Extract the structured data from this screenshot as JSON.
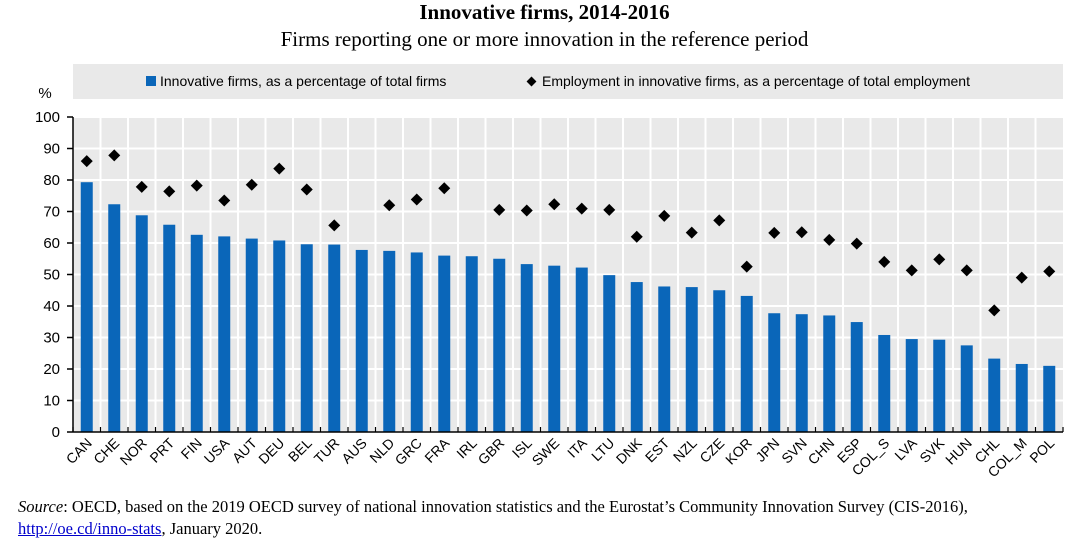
{
  "chart_data": {
    "type": "bar",
    "title": "Innovative firms, 2014-2016",
    "subtitle": "Firms reporting one or more innovation in the reference period",
    "ylabel": "%",
    "xlabel": "",
    "ylim": [
      0,
      100
    ],
    "yticks": [
      0,
      10,
      20,
      30,
      40,
      50,
      60,
      70,
      80,
      90,
      100
    ],
    "grid": true,
    "legend_position": "top",
    "categories": [
      "CAN",
      "CHE",
      "NOR",
      "PRT",
      "FIN",
      "USA",
      "AUT",
      "DEU",
      "BEL",
      "TUR",
      "AUS",
      "NLD",
      "GRC",
      "FRA",
      "IRL",
      "GBR",
      "ISL",
      "SWE",
      "ITA",
      "LTU",
      "DNK",
      "EST",
      "NZL",
      "CZE",
      "KOR",
      "JPN",
      "SVN",
      "CHN",
      "ESP",
      "COL_S",
      "LVA",
      "SVK",
      "HUN",
      "CHL",
      "COL_M",
      "POL"
    ],
    "series": [
      {
        "name": "Innovative firms, as a percentage of total firms",
        "type": "bar",
        "color": "#0a66b9",
        "values": [
          79.3,
          72.3,
          68.8,
          65.8,
          62.6,
          62.1,
          61.4,
          60.8,
          59.6,
          59.5,
          57.8,
          57.5,
          57.0,
          56.0,
          55.8,
          55.0,
          53.3,
          52.8,
          52.2,
          49.8,
          47.6,
          46.2,
          46.0,
          45.0,
          43.2,
          37.7,
          37.4,
          37.0,
          34.9,
          30.8,
          29.5,
          29.3,
          27.5,
          23.3,
          21.6,
          21.0
        ]
      },
      {
        "name": "Employment in innovative firms, as a percentage of total employment",
        "type": "scatter",
        "marker": "diamond",
        "color": "#000000",
        "values": [
          86.0,
          87.8,
          77.8,
          76.4,
          78.2,
          73.5,
          78.5,
          83.6,
          77.0,
          65.6,
          null,
          72.0,
          73.8,
          77.4,
          null,
          70.5,
          70.3,
          72.3,
          70.9,
          70.5,
          62.0,
          68.6,
          63.3,
          67.2,
          52.5,
          63.2,
          63.4,
          61.0,
          59.8,
          54.0,
          51.3,
          54.8,
          51.3,
          38.6,
          49.0,
          51.0
        ]
      }
    ]
  },
  "legend": {
    "bar_label": "Innovative firms, as a percentage of total firms",
    "diamond_label": "Employment in innovative firms, as a percentage of total employment"
  },
  "source": {
    "prefix": "Source",
    "text_1": ": OECD, based on the 2019 OECD survey of national innovation statistics and the Eurostat’s Community Innovation Survey (CIS-2016), ",
    "link": "http://oe.cd/inno-stats",
    "text_2": ", January 2020."
  }
}
